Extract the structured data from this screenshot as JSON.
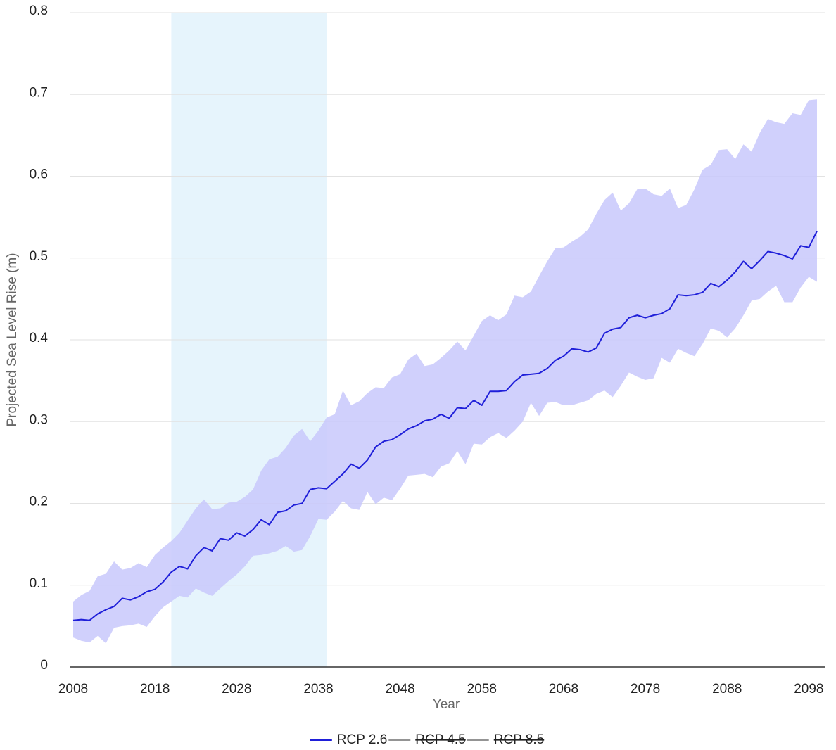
{
  "chart_data": {
    "type": "line",
    "x_label": "Year",
    "y_label": "Projected Sea Level Rise (m)",
    "x": [
      2008,
      2009,
      2010,
      2011,
      2012,
      2013,
      2014,
      2015,
      2016,
      2017,
      2018,
      2019,
      2020,
      2021,
      2022,
      2023,
      2024,
      2025,
      2026,
      2027,
      2028,
      2029,
      2030,
      2031,
      2032,
      2033,
      2034,
      2035,
      2036,
      2037,
      2038,
      2039,
      2040,
      2041,
      2042,
      2043,
      2044,
      2045,
      2046,
      2047,
      2048,
      2049,
      2050,
      2051,
      2052,
      2053,
      2054,
      2055,
      2056,
      2057,
      2058,
      2059,
      2060,
      2061,
      2062,
      2063,
      2064,
      2065,
      2066,
      2067,
      2068,
      2069,
      2070,
      2071,
      2072,
      2073,
      2074,
      2075,
      2076,
      2077,
      2078,
      2079,
      2080,
      2081,
      2082,
      2083,
      2084,
      2085,
      2086,
      2087,
      2088,
      2089,
      2090,
      2091,
      2092,
      2093,
      2094,
      2095,
      2096,
      2097,
      2098,
      2099
    ],
    "series": [
      {
        "name": "RCP 2.6",
        "color": "#1f1fd9",
        "band_color": "#c8c8fc",
        "values": [
          0.057,
          0.058,
          0.057,
          0.065,
          0.07,
          0.074,
          0.084,
          0.082,
          0.086,
          0.092,
          0.095,
          0.104,
          0.116,
          0.123,
          0.12,
          0.136,
          0.146,
          0.142,
          0.157,
          0.155,
          0.164,
          0.16,
          0.168,
          0.18,
          0.174,
          0.189,
          0.191,
          0.198,
          0.2,
          0.217,
          0.219,
          0.218,
          0.227,
          0.236,
          0.248,
          0.243,
          0.253,
          0.269,
          0.276,
          0.278,
          0.284,
          0.291,
          0.295,
          0.301,
          0.303,
          0.309,
          0.304,
          0.317,
          0.316,
          0.326,
          0.32,
          0.337,
          0.337,
          0.338,
          0.349,
          0.357,
          0.358,
          0.359,
          0.365,
          0.375,
          0.38,
          0.389,
          0.388,
          0.385,
          0.39,
          0.408,
          0.413,
          0.415,
          0.427,
          0.43,
          0.427,
          0.43,
          0.432,
          0.438,
          0.455,
          0.454,
          0.455,
          0.458,
          0.469,
          0.465,
          0.473,
          0.483,
          0.496,
          0.487,
          0.497,
          0.508,
          0.506,
          0.503,
          0.499,
          0.515,
          0.513,
          0.533
        ],
        "upper": [
          0.08,
          0.088,
          0.093,
          0.111,
          0.114,
          0.129,
          0.119,
          0.121,
          0.127,
          0.122,
          0.137,
          0.146,
          0.154,
          0.164,
          0.179,
          0.194,
          0.205,
          0.193,
          0.194,
          0.201,
          0.202,
          0.208,
          0.217,
          0.24,
          0.254,
          0.257,
          0.268,
          0.283,
          0.291,
          0.276,
          0.289,
          0.305,
          0.309,
          0.338,
          0.32,
          0.325,
          0.335,
          0.342,
          0.341,
          0.354,
          0.358,
          0.376,
          0.383,
          0.368,
          0.37,
          0.378,
          0.387,
          0.398,
          0.387,
          0.405,
          0.423,
          0.43,
          0.424,
          0.431,
          0.454,
          0.452,
          0.459,
          0.478,
          0.496,
          0.512,
          0.513,
          0.52,
          0.526,
          0.535,
          0.554,
          0.571,
          0.58,
          0.558,
          0.567,
          0.584,
          0.585,
          0.578,
          0.576,
          0.585,
          0.561,
          0.565,
          0.584,
          0.608,
          0.614,
          0.632,
          0.633,
          0.621,
          0.639,
          0.63,
          0.653,
          0.67,
          0.666,
          0.664,
          0.677,
          0.675,
          0.693,
          0.694
        ],
        "lower": [
          0.036,
          0.032,
          0.03,
          0.038,
          0.029,
          0.048,
          0.05,
          0.051,
          0.053,
          0.049,
          0.062,
          0.073,
          0.08,
          0.087,
          0.085,
          0.096,
          0.091,
          0.087,
          0.096,
          0.105,
          0.113,
          0.123,
          0.136,
          0.137,
          0.139,
          0.142,
          0.148,
          0.141,
          0.143,
          0.16,
          0.181,
          0.18,
          0.19,
          0.203,
          0.194,
          0.192,
          0.214,
          0.199,
          0.207,
          0.204,
          0.218,
          0.234,
          0.235,
          0.236,
          0.232,
          0.245,
          0.249,
          0.264,
          0.248,
          0.273,
          0.272,
          0.281,
          0.286,
          0.28,
          0.289,
          0.3,
          0.323,
          0.307,
          0.323,
          0.324,
          0.32,
          0.32,
          0.323,
          0.326,
          0.334,
          0.338,
          0.33,
          0.344,
          0.36,
          0.355,
          0.351,
          0.353,
          0.378,
          0.372,
          0.389,
          0.384,
          0.38,
          0.395,
          0.414,
          0.411,
          0.403,
          0.414,
          0.43,
          0.448,
          0.45,
          0.459,
          0.466,
          0.446,
          0.446,
          0.464,
          0.477,
          0.471
        ]
      },
      {
        "name": "RCP 4.5",
        "color": "#555555",
        "hidden": true
      },
      {
        "name": "RCP 8.5",
        "color": "#555555",
        "hidden": true
      }
    ],
    "highlight_range": [
      2020,
      2039
    ],
    "highlight_color": "#e6f4fc",
    "xlim": [
      2008,
      2099
    ],
    "xticks": [
      2008,
      2018,
      2028,
      2038,
      2048,
      2058,
      2068,
      2078,
      2088,
      2098
    ],
    "ylim": [
      0,
      0.8
    ],
    "yticks": [
      0,
      0.1,
      0.2,
      0.3,
      0.4,
      0.5,
      0.6,
      0.7,
      0.8
    ],
    "grid": true,
    "legend": "bottom"
  }
}
